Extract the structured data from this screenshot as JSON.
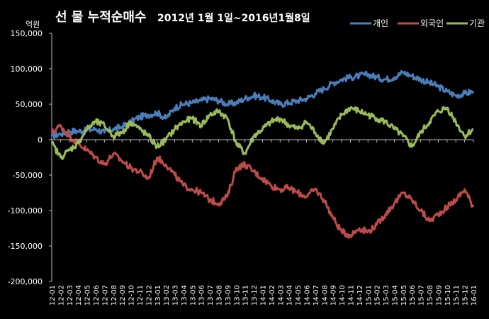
{
  "chart_data": {
    "type": "line",
    "title_main": "선 물 누적순매수",
    "title_sub": "2012년 1월 1일~2016년1월8일",
    "ylabel": "억원",
    "ylim": [
      -200000,
      150000
    ],
    "yticks": [
      "150,000",
      "100,000",
      "50,000",
      "0",
      "-50,000",
      "-100,000",
      "-150,000",
      "-200,000"
    ],
    "ytick_values": [
      150000,
      100000,
      50000,
      0,
      -50000,
      -100000,
      -150000,
      -200000
    ],
    "grid": false,
    "legend_position": "top-right",
    "x": [
      "12-01",
      "12-02",
      "12-03",
      "12-04",
      "12-05",
      "12-06",
      "12-07",
      "12-08",
      "12-09",
      "12-10",
      "12-11",
      "12-12",
      "13-01",
      "13-02",
      "13-03",
      "13-04",
      "13-05",
      "13-06",
      "13-07",
      "13-08",
      "13-09",
      "13-10",
      "13-11",
      "13-12",
      "14-01",
      "14-02",
      "14-03",
      "14-04",
      "14-05",
      "14-06",
      "14-07",
      "14-08",
      "14-09",
      "14-10",
      "14-11",
      "14-12",
      "15-01",
      "15-02",
      "15-03",
      "15-04",
      "15-05",
      "15-06",
      "15-07",
      "15-08",
      "15-09",
      "15-10",
      "15-11",
      "15-12",
      "16-01"
    ],
    "series": [
      {
        "name": "개인",
        "color": "#4a7ebb",
        "values": [
          5000,
          8000,
          12000,
          12000,
          13000,
          15000,
          10000,
          15000,
          18000,
          25000,
          32000,
          35000,
          38000,
          30000,
          45000,
          50000,
          52000,
          55000,
          58000,
          55000,
          50000,
          52000,
          58000,
          62000,
          60000,
          55000,
          50000,
          52000,
          55000,
          58000,
          65000,
          72000,
          80000,
          85000,
          88000,
          90000,
          92000,
          88000,
          85000,
          88000,
          95000,
          90000,
          85000,
          80000,
          75000,
          68000,
          62000,
          65000,
          68000
        ]
      },
      {
        "name": "외국인",
        "color": "#be4b48",
        "values": [
          10000,
          20000,
          5000,
          -5000,
          -15000,
          -25000,
          -35000,
          -20000,
          -30000,
          -40000,
          -45000,
          -55000,
          -25000,
          -35000,
          -50000,
          -65000,
          -70000,
          -75000,
          -85000,
          -90000,
          -80000,
          -40000,
          -35000,
          -45000,
          -55000,
          -65000,
          -70000,
          -68000,
          -75000,
          -80000,
          -70000,
          -85000,
          -110000,
          -130000,
          -135000,
          -125000,
          -130000,
          -120000,
          -105000,
          -90000,
          -75000,
          -85000,
          -100000,
          -115000,
          -105000,
          -95000,
          -85000,
          -70000,
          -95000
        ]
      },
      {
        "name": "기관",
        "color": "#9bbb59",
        "values": [
          -5000,
          -25000,
          -15000,
          -5000,
          15000,
          25000,
          20000,
          5000,
          10000,
          25000,
          15000,
          5000,
          -10000,
          0,
          15000,
          25000,
          30000,
          20000,
          35000,
          40000,
          30000,
          -5000,
          -20000,
          5000,
          15000,
          25000,
          30000,
          20000,
          15000,
          25000,
          10000,
          -5000,
          15000,
          35000,
          45000,
          40000,
          35000,
          30000,
          25000,
          15000,
          5000,
          -10000,
          10000,
          25000,
          40000,
          45000,
          25000,
          5000,
          15000
        ]
      }
    ]
  }
}
